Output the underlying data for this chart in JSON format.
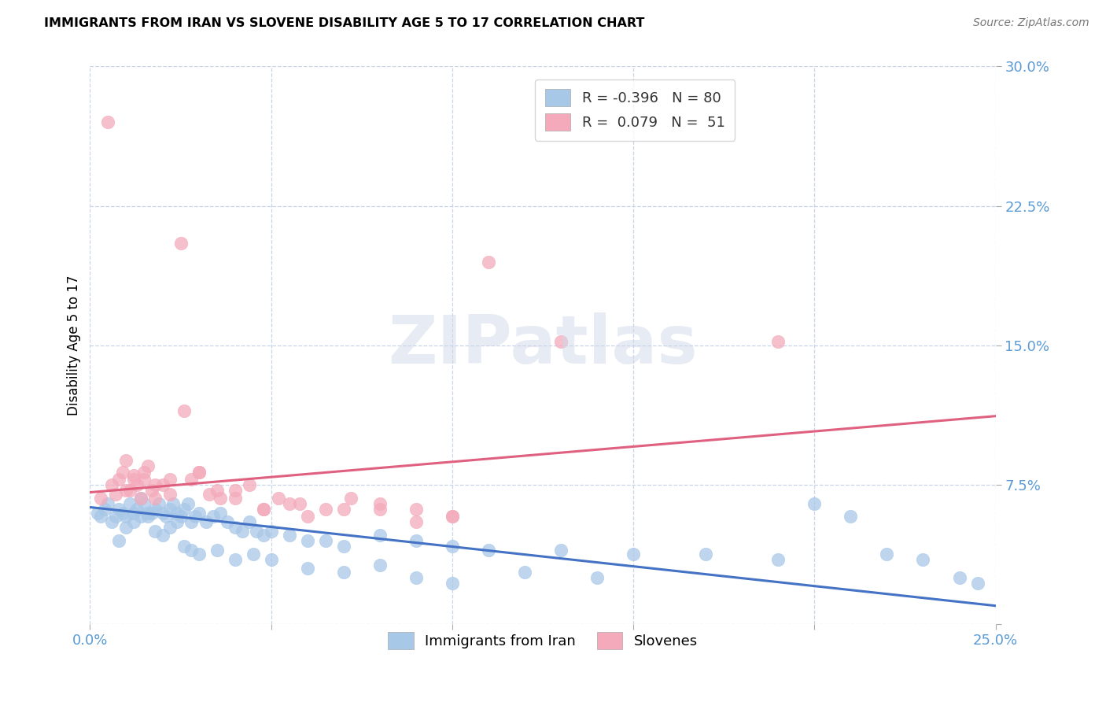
{
  "title": "IMMIGRANTS FROM IRAN VS SLOVENE DISABILITY AGE 5 TO 17 CORRELATION CHART",
  "source": "Source: ZipAtlas.com",
  "ylabel": "Disability Age 5 to 17",
  "xlim": [
    0.0,
    0.25
  ],
  "ylim": [
    0.0,
    0.3
  ],
  "x_ticks": [
    0.0,
    0.05,
    0.1,
    0.15,
    0.2,
    0.25
  ],
  "y_ticks": [
    0.0,
    0.075,
    0.15,
    0.225,
    0.3
  ],
  "legend_R_blue": "-0.396",
  "legend_N_blue": "80",
  "legend_R_pink": "0.079",
  "legend_N_pink": "51",
  "blue_color": "#a8c8e8",
  "pink_color": "#f4aabb",
  "blue_line_color": "#4472c4",
  "pink_line_color": "#e06080",
  "axis_tick_color": "#5b9bd5",
  "watermark_text": "ZIPatlas",
  "blue_line_y_start": 0.063,
  "blue_line_y_end": 0.01,
  "pink_line_y_start": 0.071,
  "pink_line_y_end": 0.112,
  "grid_color": "#c8d4e8",
  "background_color": "#ffffff",
  "blue_scatter_x": [
    0.002,
    0.003,
    0.004,
    0.005,
    0.006,
    0.007,
    0.008,
    0.009,
    0.01,
    0.011,
    0.012,
    0.013,
    0.014,
    0.015,
    0.016,
    0.017,
    0.018,
    0.019,
    0.02,
    0.021,
    0.022,
    0.023,
    0.024,
    0.025,
    0.026,
    0.027,
    0.028,
    0.029,
    0.03,
    0.032,
    0.034,
    0.036,
    0.038,
    0.04,
    0.042,
    0.044,
    0.046,
    0.048,
    0.05,
    0.055,
    0.06,
    0.065,
    0.07,
    0.08,
    0.09,
    0.1,
    0.11,
    0.13,
    0.15,
    0.17,
    0.19,
    0.2,
    0.21,
    0.22,
    0.23,
    0.24,
    0.245,
    0.008,
    0.01,
    0.012,
    0.014,
    0.016,
    0.018,
    0.02,
    0.022,
    0.024,
    0.026,
    0.028,
    0.03,
    0.035,
    0.04,
    0.045,
    0.05,
    0.06,
    0.07,
    0.08,
    0.09,
    0.1,
    0.12,
    0.14
  ],
  "blue_scatter_y": [
    0.06,
    0.058,
    0.062,
    0.065,
    0.055,
    0.058,
    0.062,
    0.06,
    0.058,
    0.065,
    0.06,
    0.062,
    0.068,
    0.065,
    0.058,
    0.06,
    0.062,
    0.065,
    0.06,
    0.058,
    0.062,
    0.065,
    0.06,
    0.058,
    0.062,
    0.065,
    0.055,
    0.058,
    0.06,
    0.055,
    0.058,
    0.06,
    0.055,
    0.052,
    0.05,
    0.055,
    0.05,
    0.048,
    0.05,
    0.048,
    0.045,
    0.045,
    0.042,
    0.048,
    0.045,
    0.042,
    0.04,
    0.04,
    0.038,
    0.038,
    0.035,
    0.065,
    0.058,
    0.038,
    0.035,
    0.025,
    0.022,
    0.045,
    0.052,
    0.055,
    0.058,
    0.06,
    0.05,
    0.048,
    0.052,
    0.055,
    0.042,
    0.04,
    0.038,
    0.04,
    0.035,
    0.038,
    0.035,
    0.03,
    0.028,
    0.032,
    0.025,
    0.022,
    0.028,
    0.025
  ],
  "pink_scatter_x": [
    0.003,
    0.005,
    0.006,
    0.007,
    0.008,
    0.009,
    0.01,
    0.011,
    0.012,
    0.013,
    0.014,
    0.015,
    0.016,
    0.017,
    0.018,
    0.02,
    0.022,
    0.025,
    0.028,
    0.03,
    0.033,
    0.036,
    0.04,
    0.044,
    0.048,
    0.052,
    0.058,
    0.065,
    0.072,
    0.08,
    0.09,
    0.1,
    0.11,
    0.13,
    0.19,
    0.01,
    0.012,
    0.015,
    0.018,
    0.022,
    0.026,
    0.03,
    0.035,
    0.04,
    0.048,
    0.055,
    0.06,
    0.07,
    0.08,
    0.09,
    0.1
  ],
  "pink_scatter_y": [
    0.068,
    0.27,
    0.075,
    0.07,
    0.078,
    0.082,
    0.088,
    0.072,
    0.08,
    0.075,
    0.068,
    0.078,
    0.085,
    0.072,
    0.068,
    0.075,
    0.07,
    0.205,
    0.078,
    0.082,
    0.07,
    0.068,
    0.072,
    0.075,
    0.062,
    0.068,
    0.065,
    0.062,
    0.068,
    0.065,
    0.062,
    0.058,
    0.195,
    0.152,
    0.152,
    0.072,
    0.078,
    0.082,
    0.075,
    0.078,
    0.115,
    0.082,
    0.072,
    0.068,
    0.062,
    0.065,
    0.058,
    0.062,
    0.062,
    0.055,
    0.058
  ]
}
